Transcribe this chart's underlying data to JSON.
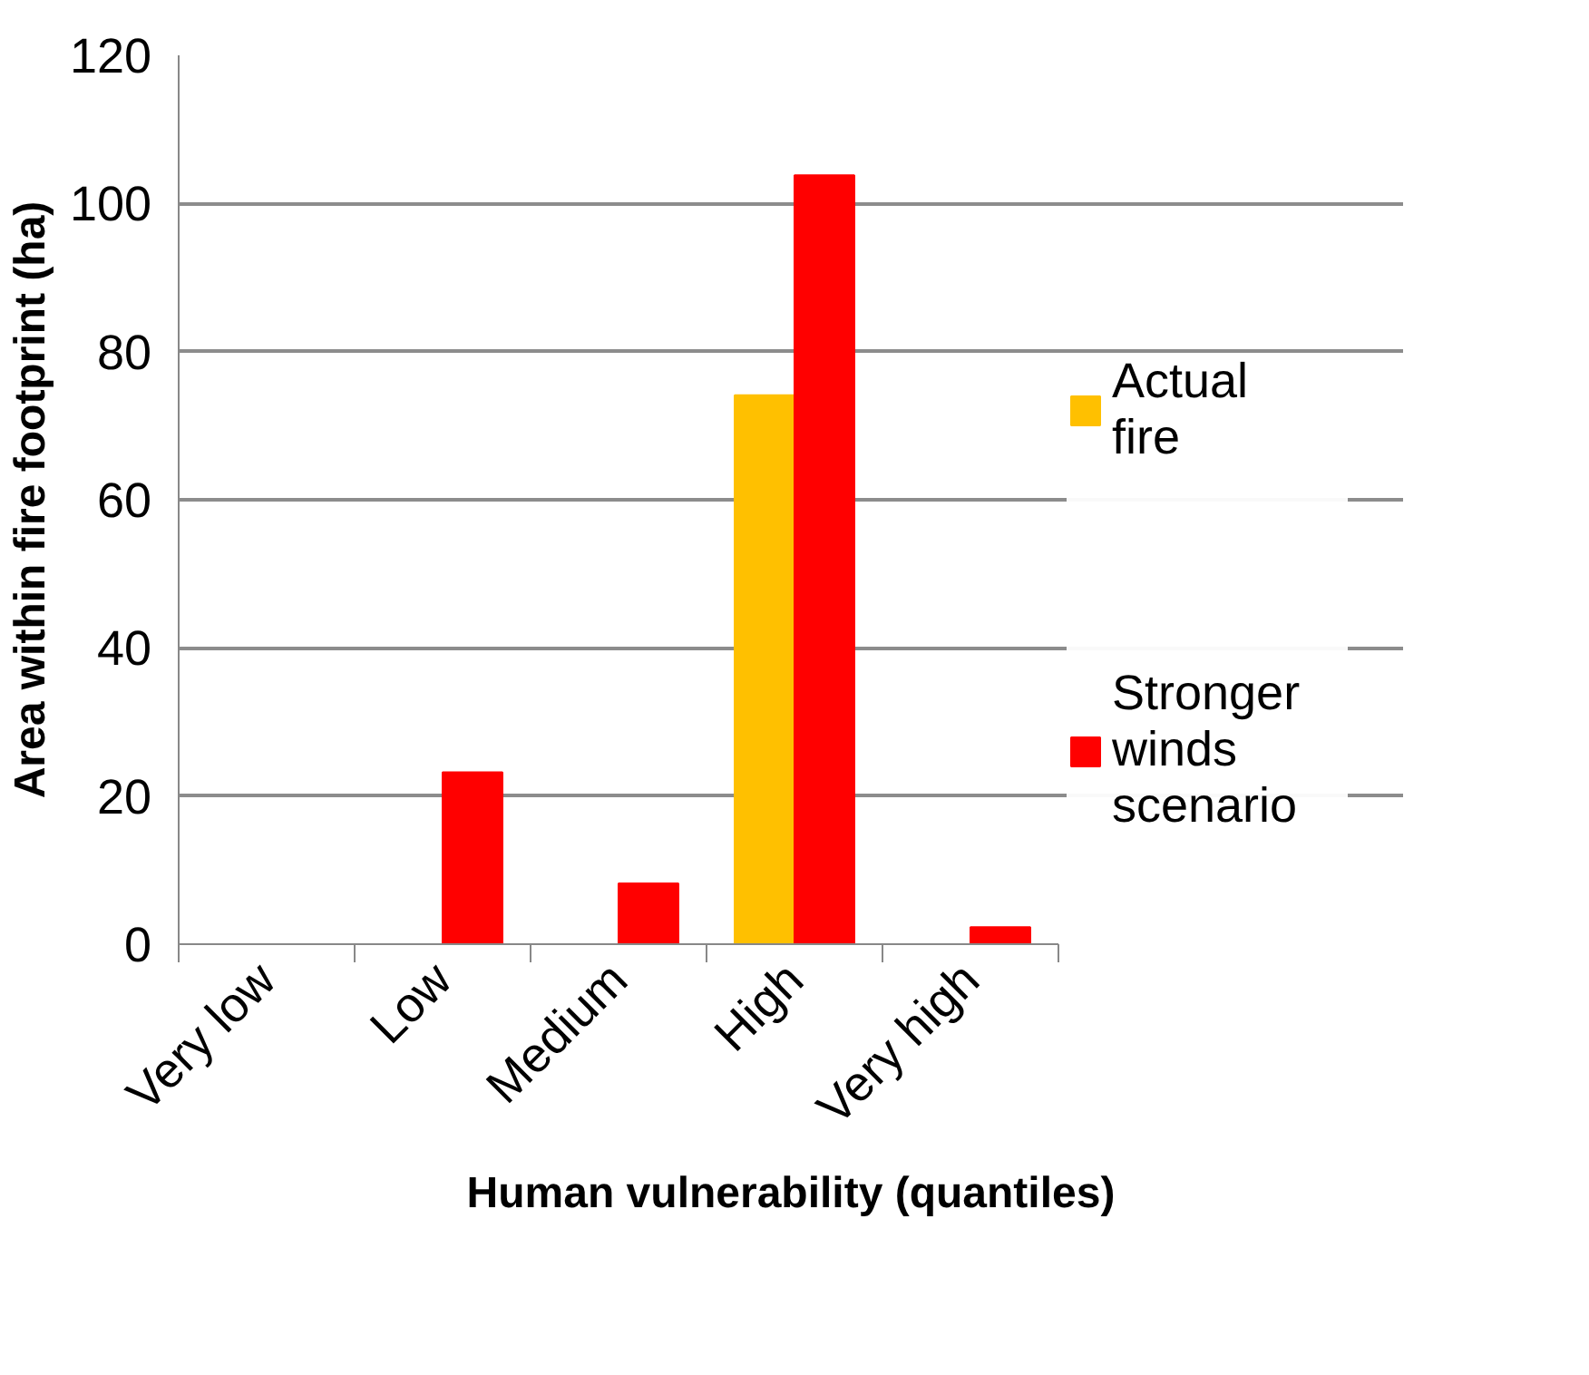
{
  "chart_data": {
    "type": "bar",
    "xlabel": "Human vulnerability (quantiles)",
    "ylabel": "Area within fire footprint (ha)",
    "categories": [
      "Very low",
      "Low",
      "Medium",
      "High",
      "Very high"
    ],
    "series": [
      {
        "name": "Actual fire",
        "color": "#ffc000",
        "values": [
          null,
          null,
          null,
          74.1,
          null
        ]
      },
      {
        "name": "Stronger winds scenario",
        "color": "#ff0000",
        "values": [
          null,
          23.2,
          8.2,
          103.8,
          2.3
        ]
      }
    ],
    "ylim": [
      0,
      120
    ],
    "yticks": [
      0,
      20,
      40,
      60,
      80,
      100,
      120
    ],
    "grid": "y",
    "legend": "right"
  }
}
